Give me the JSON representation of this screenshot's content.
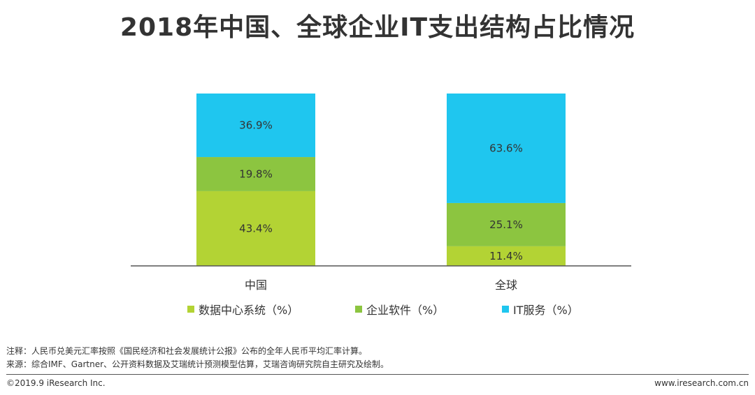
{
  "title": "2018年中国、全球企业IT支出结构占比情况",
  "colors": {
    "datacenter": "#b3d334",
    "software": "#8cc540",
    "itservice": "#1fc6ef",
    "axis": "#555555"
  },
  "chart_data": {
    "type": "bar",
    "stacked": true,
    "categories": [
      "中国",
      "全球"
    ],
    "series": [
      {
        "name": "数据中心系统（%）",
        "values": [
          43.4,
          11.4
        ],
        "labels": [
          "43.4%",
          "11.4%"
        ]
      },
      {
        "name": "企业软件（%）",
        "values": [
          19.8,
          25.1
        ],
        "labels": [
          "19.8%",
          "25.1%"
        ]
      },
      {
        "name": "IT服务（%）",
        "values": [
          36.9,
          63.6
        ],
        "labels": [
          "36.9%",
          "63.6%"
        ]
      }
    ],
    "ylim": [
      0,
      100
    ],
    "grid": false,
    "legend_position": "bottom"
  },
  "notes": {
    "note": "注释：人民币兑美元汇率按照《国民经济和社会发展统计公报》公布的全年人民币平均汇率计算。",
    "source": "来源：综合IMF、Gartner、公开资料数据及艾瑞统计预测模型估算，艾瑞咨询研究院自主研究及绘制。"
  },
  "footer": {
    "copyright": "©2019.9 iResearch Inc.",
    "website": "www.iresearch.com.cn"
  }
}
